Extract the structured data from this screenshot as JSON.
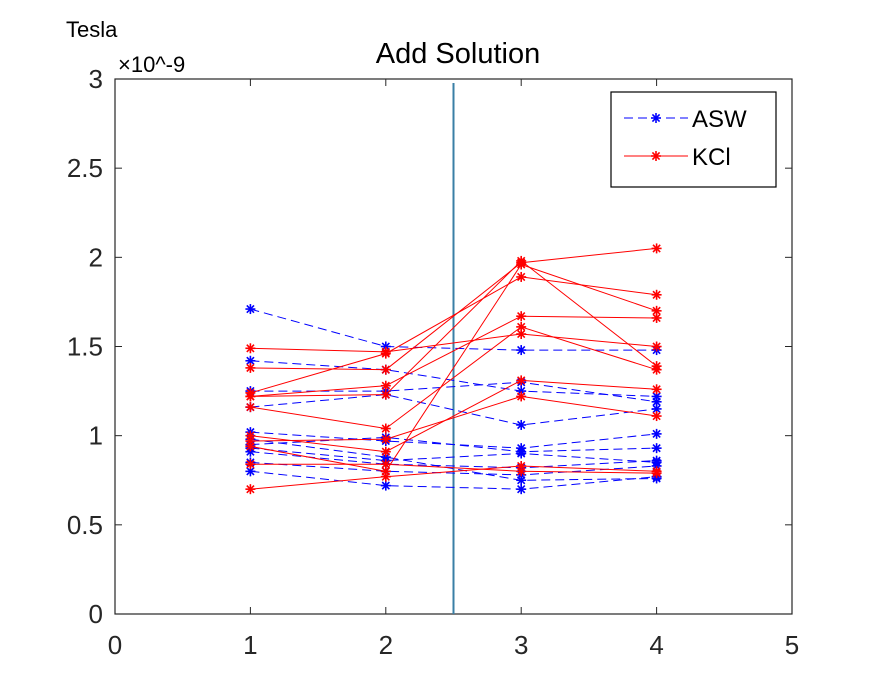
{
  "chart_data": {
    "type": "line",
    "title": "Add Solution",
    "ylabel": "Tesla",
    "y_exponent": "×10^-9",
    "xlim": [
      0,
      5
    ],
    "ylim": [
      0,
      3
    ],
    "x_ticks": [
      "0",
      "1",
      "2",
      "3",
      "4",
      "5"
    ],
    "y_ticks": [
      "0",
      "0.5",
      "1",
      "1.5",
      "2",
      "2.5",
      "3"
    ],
    "grid": false,
    "legend_position": "top-right",
    "legend": [
      "ASW",
      "KCl"
    ],
    "vertical_line_x": 2.5,
    "x": [
      1,
      2,
      3,
      4
    ],
    "series": [
      {
        "name": "ASW",
        "style": "dashed",
        "color": "#0000ff",
        "values": [
          1.71,
          1.5,
          1.48,
          1.48
        ]
      },
      {
        "name": "ASW",
        "style": "dashed",
        "color": "#0000ff",
        "values": [
          1.42,
          1.37,
          1.25,
          1.22
        ]
      },
      {
        "name": "ASW",
        "style": "dashed",
        "color": "#0000ff",
        "values": [
          1.25,
          1.25,
          1.3,
          1.19
        ]
      },
      {
        "name": "ASW",
        "style": "dashed",
        "color": "#0000ff",
        "values": [
          1.16,
          1.23,
          1.06,
          1.15
        ]
      },
      {
        "name": "ASW",
        "style": "dashed",
        "color": "#0000ff",
        "values": [
          1.02,
          0.97,
          0.93,
          1.01
        ]
      },
      {
        "name": "ASW",
        "style": "dashed",
        "color": "#0000ff",
        "values": [
          0.95,
          0.99,
          0.91,
          0.93
        ]
      },
      {
        "name": "ASW",
        "style": "dashed",
        "color": "#0000ff",
        "values": [
          0.93,
          0.86,
          0.9,
          0.85
        ]
      },
      {
        "name": "ASW",
        "style": "dashed",
        "color": "#0000ff",
        "values": [
          0.91,
          0.84,
          0.82,
          0.86
        ]
      },
      {
        "name": "ASW",
        "style": "dashed",
        "color": "#0000ff",
        "values": [
          0.85,
          0.8,
          0.78,
          0.83
        ]
      },
      {
        "name": "ASW",
        "style": "dashed",
        "color": "#0000ff",
        "values": [
          0.8,
          0.72,
          0.7,
          0.77
        ]
      },
      {
        "name": "ASW",
        "style": "dashed",
        "color": "#0000ff",
        "values": [
          0.98,
          0.88,
          0.75,
          0.76
        ]
      },
      {
        "name": "KCl",
        "style": "solid",
        "color": "#ff0000",
        "values": [
          1.49,
          1.47,
          1.57,
          1.5
        ]
      },
      {
        "name": "KCl",
        "style": "solid",
        "color": "#ff0000",
        "values": [
          1.38,
          1.37,
          1.97,
          2.05
        ]
      },
      {
        "name": "KCl",
        "style": "solid",
        "color": "#ff0000",
        "values": [
          1.24,
          1.46,
          1.89,
          1.79
        ]
      },
      {
        "name": "KCl",
        "style": "solid",
        "color": "#ff0000",
        "values": [
          1.22,
          1.28,
          1.67,
          1.66
        ]
      },
      {
        "name": "KCl",
        "style": "solid",
        "color": "#ff0000",
        "values": [
          1.22,
          1.23,
          1.98,
          1.39
        ]
      },
      {
        "name": "KCl",
        "style": "solid",
        "color": "#ff0000",
        "values": [
          1.16,
          1.04,
          1.61,
          1.37
        ]
      },
      {
        "name": "KCl",
        "style": "solid",
        "color": "#ff0000",
        "values": [
          1.0,
          0.91,
          1.31,
          1.26
        ]
      },
      {
        "name": "KCl",
        "style": "solid",
        "color": "#ff0000",
        "values": [
          0.97,
          0.98,
          1.22,
          1.11
        ]
      },
      {
        "name": "KCl",
        "style": "solid",
        "color": "#ff0000",
        "values": [
          0.94,
          0.8,
          1.96,
          1.7
        ]
      },
      {
        "name": "KCl",
        "style": "solid",
        "color": "#ff0000",
        "values": [
          0.84,
          0.84,
          0.8,
          0.79
        ]
      },
      {
        "name": "KCl",
        "style": "solid",
        "color": "#ff0000",
        "values": [
          0.7,
          0.77,
          0.83,
          0.8
        ]
      }
    ]
  }
}
